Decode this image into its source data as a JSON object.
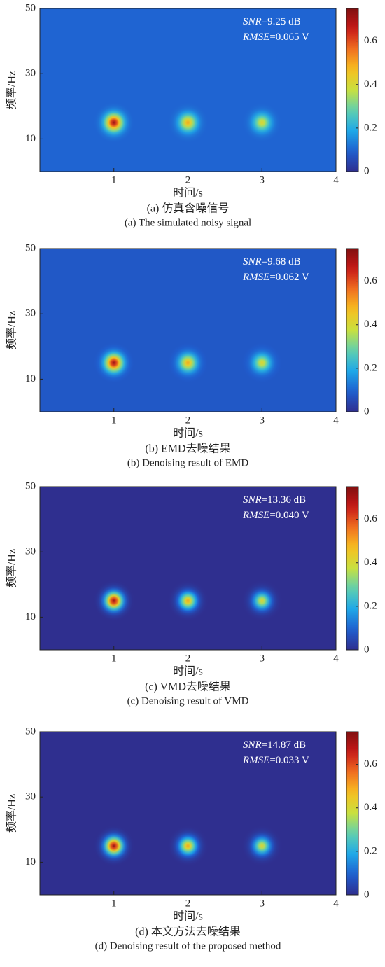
{
  "chart_data": [
    {
      "type": "heatmap",
      "title": "(a) 仿真含噪信号",
      "subtitle": "(a) The simulated noisy signal",
      "xlabel": "时间/s",
      "ylabel": "频率/Hz",
      "xlim": [
        0,
        4
      ],
      "ylim": [
        0,
        50
      ],
      "xticks": [
        1,
        2,
        3,
        4
      ],
      "yticks": [
        10,
        30,
        50
      ],
      "annotations": [
        "SNR=9.25 dB",
        "RMSE=0.065 V"
      ],
      "background_level": 0.1,
      "clim": [
        0,
        0.75
      ],
      "cticks": [
        0,
        0.2,
        0.4,
        0.6
      ],
      "colormap": [
        "#2f2f8f",
        "#1f5fd0",
        "#1fa8e8",
        "#5fd0b0",
        "#c8e040",
        "#f8c020",
        "#f07020",
        "#c81818",
        "#801010"
      ],
      "peaks": [
        {
          "x": 1,
          "y": 15,
          "value": 0.72
        },
        {
          "x": 2,
          "y": 15,
          "value": 0.5
        },
        {
          "x": 3,
          "y": 15,
          "value": 0.42
        }
      ]
    },
    {
      "type": "heatmap",
      "title": "(b) EMD去噪结果",
      "subtitle": "(b) Denoising result of EMD",
      "xlabel": "时间/s",
      "ylabel": "频率/Hz",
      "xlim": [
        0,
        4
      ],
      "ylim": [
        0,
        50
      ],
      "xticks": [
        1,
        2,
        3,
        4
      ],
      "yticks": [
        10,
        30,
        50
      ],
      "annotations": [
        "SNR=9.68 dB",
        "RMSE=0.062 V"
      ],
      "background_level": 0.08,
      "clim": [
        0,
        0.75
      ],
      "cticks": [
        0,
        0.2,
        0.4,
        0.6
      ],
      "colormap": [
        "#2f2f8f",
        "#1f5fd0",
        "#1fa8e8",
        "#5fd0b0",
        "#c8e040",
        "#f8c020",
        "#f07020",
        "#c81818",
        "#801010"
      ],
      "peaks": [
        {
          "x": 1,
          "y": 15,
          "value": 0.72
        },
        {
          "x": 2,
          "y": 15,
          "value": 0.5
        },
        {
          "x": 3,
          "y": 15,
          "value": 0.42
        }
      ]
    },
    {
      "type": "heatmap",
      "title": "(c) VMD去噪结果",
      "subtitle": "(c) Denoising result of VMD",
      "xlabel": "时间/s",
      "ylabel": "频率/Hz",
      "xlim": [
        0,
        4
      ],
      "ylim": [
        0,
        50
      ],
      "xticks": [
        1,
        2,
        3,
        4
      ],
      "yticks": [
        10,
        30,
        50
      ],
      "annotations": [
        "SNR=13.36 dB",
        "RMSE=0.040 V"
      ],
      "background_level": 0,
      "clim": [
        0,
        0.75
      ],
      "cticks": [
        0,
        0.2,
        0.4,
        0.6
      ],
      "colormap": [
        "#2f2f8f",
        "#1f5fd0",
        "#1fa8e8",
        "#5fd0b0",
        "#c8e040",
        "#f8c020",
        "#f07020",
        "#c81818",
        "#801010"
      ],
      "peaks": [
        {
          "x": 1,
          "y": 15,
          "value": 0.72
        },
        {
          "x": 2,
          "y": 15,
          "value": 0.5
        },
        {
          "x": 3,
          "y": 15,
          "value": 0.42
        }
      ]
    },
    {
      "type": "heatmap",
      "title": "(d) 本文方法去噪结果",
      "subtitle": "(d) Denoising result of the proposed method",
      "xlabel": "时间/s",
      "ylabel": "频率/Hz",
      "xlim": [
        0,
        4
      ],
      "ylim": [
        0,
        50
      ],
      "xticks": [
        1,
        2,
        3,
        4
      ],
      "yticks": [
        10,
        30,
        50
      ],
      "annotations": [
        "SNR=14.87 dB",
        "RMSE=0.033 V"
      ],
      "background_level": 0,
      "clim": [
        0,
        0.75
      ],
      "cticks": [
        0,
        0.2,
        0.4,
        0.6
      ],
      "colormap": [
        "#2f2f8f",
        "#1f5fd0",
        "#1fa8e8",
        "#5fd0b0",
        "#c8e040",
        "#f8c020",
        "#f07020",
        "#c81818",
        "#801010"
      ],
      "peaks": [
        {
          "x": 1,
          "y": 15,
          "value": 0.72
        },
        {
          "x": 2,
          "y": 15,
          "value": 0.5
        },
        {
          "x": 3,
          "y": 15,
          "value": 0.42
        }
      ]
    }
  ]
}
